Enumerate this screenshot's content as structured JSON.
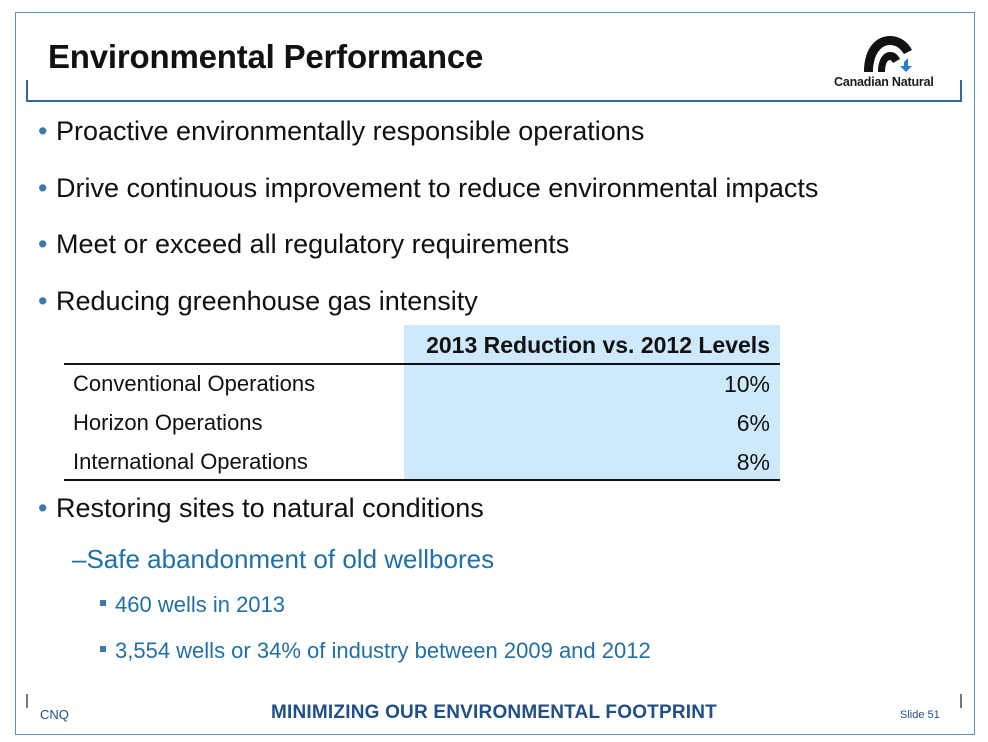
{
  "slide": {
    "title": "Environmental Performance",
    "logo_text": "Canadian Natural"
  },
  "bullets": [
    "Proactive environmentally responsible operations",
    "Drive continuous improvement to reduce environmental impacts",
    "Meet or exceed all regulatory requirements",
    "Reducing greenhouse gas intensity",
    "Restoring sites to natural conditions"
  ],
  "ghg_table": {
    "header": "2013 Reduction vs. 2012 Levels",
    "rows": [
      {
        "label": "Conventional Operations",
        "value": "10%"
      },
      {
        "label": "Horizon Operations",
        "value": "6%"
      },
      {
        "label": "International Operations",
        "value": "8%"
      }
    ]
  },
  "restoring": {
    "sub_item": "Safe abandonment of old wellbores",
    "details": [
      "460 wells in 2013",
      "3,554 wells or 34% of industry between 2009 and 2012"
    ]
  },
  "footer": {
    "company": "CNQ",
    "tagline": "MINIMIZING OUR ENVIRONMENTAL FOOTPRINT",
    "slide_number": "Slide 51"
  },
  "colors": {
    "accent_blue": "#1f6fa8",
    "table_shade": "#cde9fb",
    "frame": "#2e6a9e"
  }
}
